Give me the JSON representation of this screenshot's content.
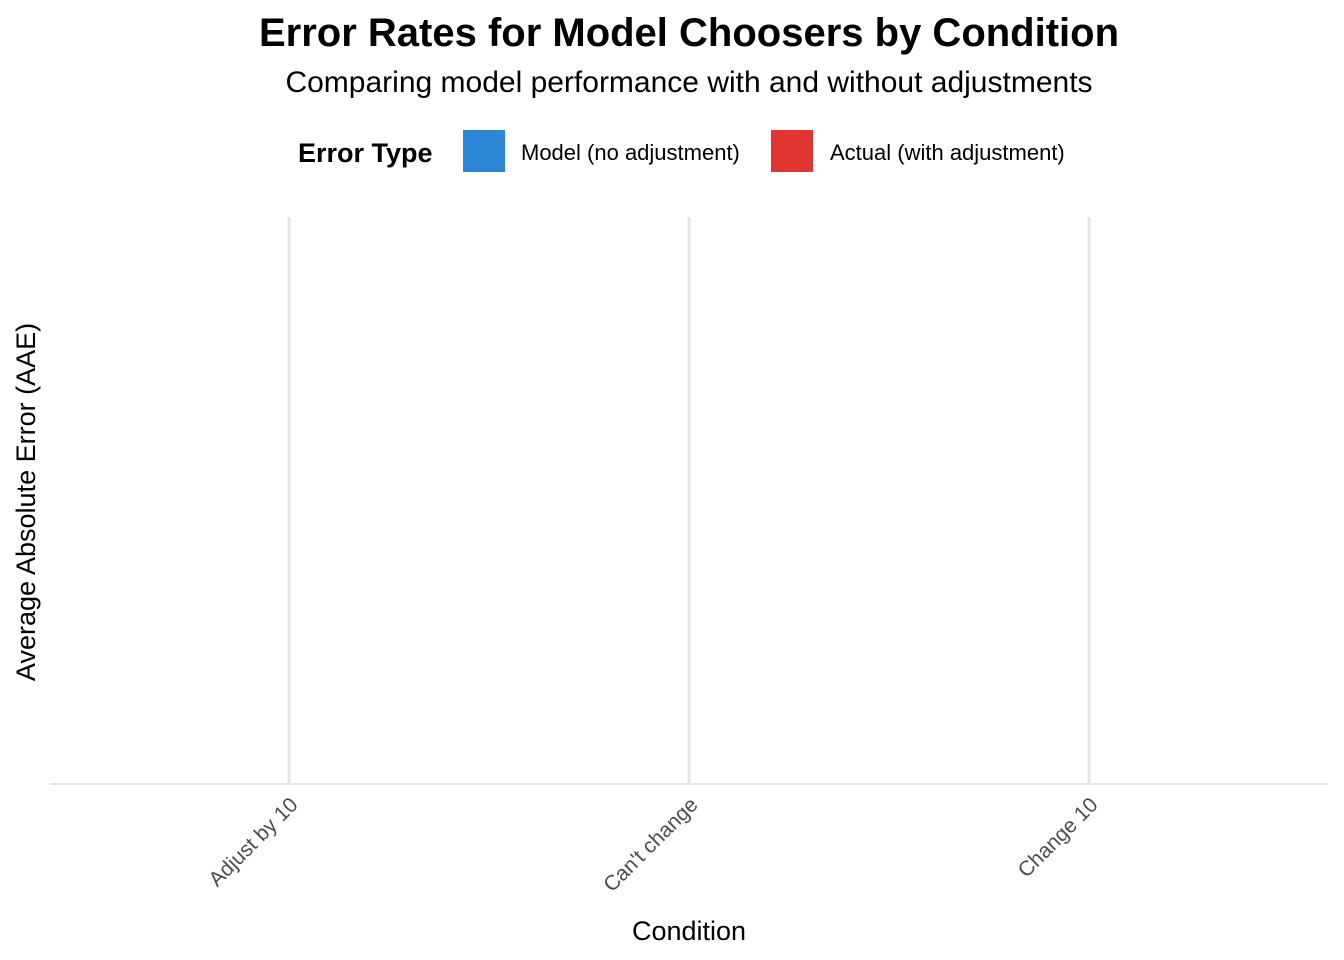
{
  "chart_data": {
    "type": "bar",
    "title": "Error Rates for Model Choosers by Condition",
    "subtitle": "Comparing model performance with and without adjustments",
    "xlabel": "Condition",
    "ylabel": "Average Absolute Error (AAE)",
    "categories": [
      "Adjust by 10",
      "Can't change",
      "Change 10"
    ],
    "legend": {
      "title": "Error Type",
      "position": "top",
      "items": [
        {
          "label": "Model (no adjustment)",
          "color": "#2b86d6"
        },
        {
          "label": "Actual (with adjustment)",
          "color": "#e03530"
        }
      ]
    },
    "series": [
      {
        "name": "Model (no adjustment)",
        "color": "#2b86d6",
        "values": [
          null,
          null,
          null
        ]
      },
      {
        "name": "Actual (with adjustment)",
        "color": "#e03530",
        "values": [
          null,
          null,
          null
        ]
      }
    ],
    "grid": {
      "vertical": true,
      "horizontal": false
    }
  }
}
